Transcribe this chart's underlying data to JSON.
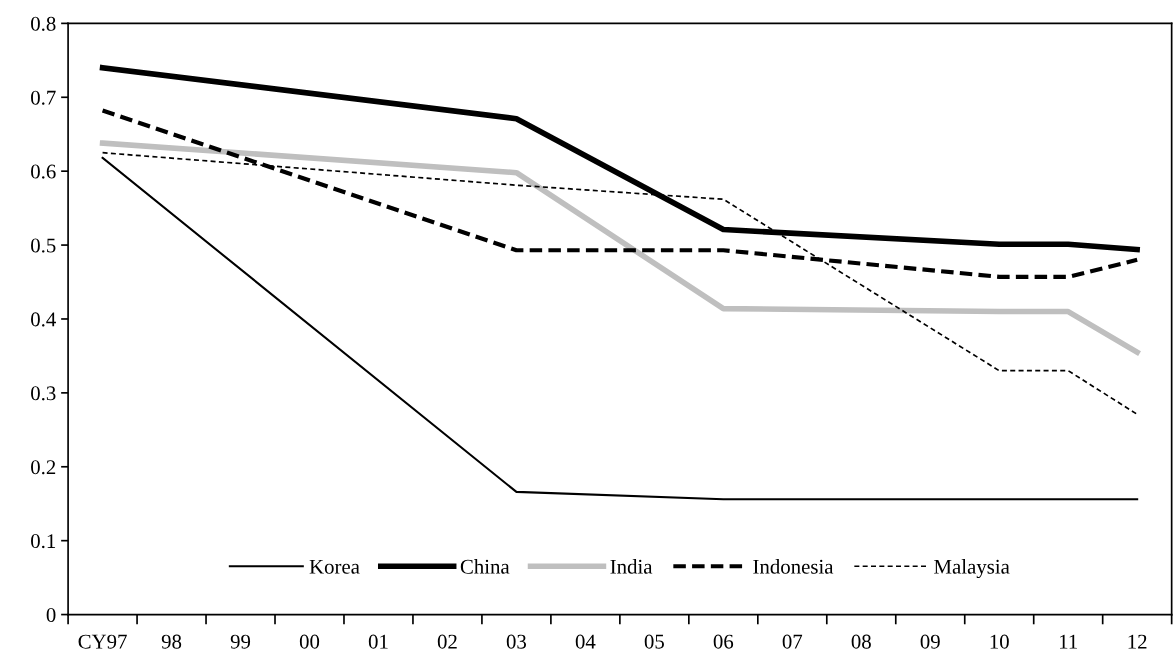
{
  "chart_data": {
    "type": "line",
    "categories": [
      "CY97",
      "98",
      "99",
      "00",
      "01",
      "02",
      "03",
      "04",
      "05",
      "06",
      "07",
      "08",
      "09",
      "10",
      "11",
      "12"
    ],
    "series": [
      {
        "name": "Korea",
        "color": "#000000",
        "line_style": "solid",
        "values": [
          0.618,
          null,
          null,
          null,
          null,
          null,
          0.166,
          null,
          null,
          0.156,
          null,
          null,
          null,
          0.156,
          0.156,
          0.156
        ]
      },
      {
        "name": "China",
        "color": "#000000",
        "line_style": "solid",
        "values": [
          0.74,
          null,
          null,
          null,
          null,
          null,
          0.671,
          null,
          null,
          0.521,
          null,
          null,
          null,
          0.501,
          0.501,
          0.494
        ]
      },
      {
        "name": "India",
        "color": "#bfbfbf",
        "line_style": "solid",
        "values": [
          0.638,
          null,
          null,
          null,
          null,
          null,
          0.598,
          null,
          null,
          0.414,
          null,
          null,
          null,
          0.41,
          0.41,
          0.355
        ]
      },
      {
        "name": "Indonesia",
        "color": "#000000",
        "line_style": "dashed",
        "values": [
          0.682,
          null,
          null,
          null,
          null,
          null,
          0.493,
          null,
          null,
          0.493,
          null,
          null,
          null,
          0.457,
          0.457,
          0.48
        ]
      },
      {
        "name": "Malaysia",
        "color": "#000000",
        "line_style": "dashed",
        "values": [
          0.625,
          null,
          null,
          null,
          null,
          null,
          0.581,
          null,
          null,
          0.562,
          null,
          null,
          null,
          0.33,
          0.33,
          0.271
        ]
      }
    ],
    "ylim": [
      0,
      0.8
    ],
    "yticks": [
      0,
      0.1,
      0.2,
      0.3,
      0.4,
      0.5,
      0.6,
      0.7,
      0.8
    ],
    "grid": false,
    "legend": "bottom",
    "marker": "none"
  }
}
